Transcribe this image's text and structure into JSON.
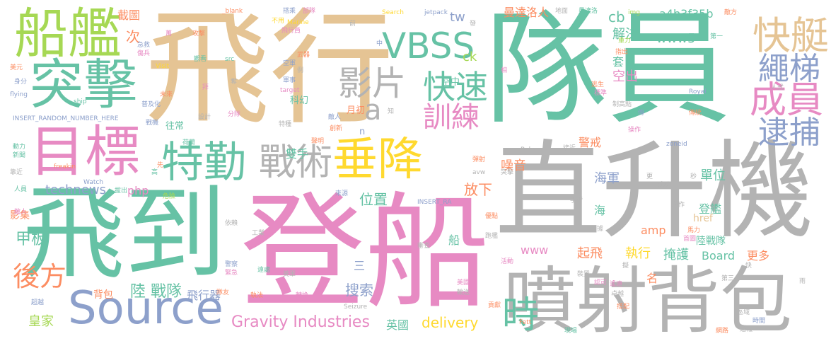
{
  "palette": {
    "green": "#66c2a5",
    "orange": "#fc8d62",
    "blue": "#8da0cb",
    "pink": "#e78ac3",
    "lime": "#a6d854",
    "yellow": "#ffd92f",
    "tan": "#e5c494",
    "gray": "#b3b3b3",
    "background": "#ffffff"
  },
  "words": {
    "feixing": "飛行",
    "duiyuan": "隊員",
    "zhishengji": "直升機",
    "dengchuan": "登船",
    "feidao": "飛到",
    "penshe_beibao": "噴射背包",
    "chuanjian": "船艦",
    "tuji": "突擊",
    "mubiao": "目標",
    "teqin": "特勤",
    "zhanshu": "戰術",
    "chuijiang": "垂降",
    "source": "Source",
    "vbss": "VBSS",
    "kuaiting": "快艇",
    "shengti": "繩梯",
    "chengyuan": "成員",
    "daibu": "逮捕",
    "yingpian": "影片",
    "kuaisu": "快速",
    "xunlian": "訓練",
    "a": "a",
    "shi": "時",
    "houfang": "後方",
    "gravity": "Gravity Industries",
    "delivery": "delivery",
    "huangjia": "皇家",
    "yingguo": "英國",
    "sousuo": "搜索",
    "luzhandui_big": "陸 戰隊",
    "feixingqi": "飛行器",
    "beibao": "背包",
    "jiaban": "甲板",
    "yingji": "影集",
    "technews": "technews",
    "php": "php",
    "weizhi": "位置",
    "shuangshou": "雙手",
    "fangxia": "放下",
    "san": "三",
    "www5": "www5",
    "jiejue": "解決",
    "cb": "cb",
    "hash": "a4b3f35b",
    "mandaluoren": "曼達洛人",
    "tw": "tw",
    "ck": "ck",
    "jietu": "截圖",
    "ci": "次",
    "jingjie": "警戒",
    "zaoyin": "噪音",
    "danwei": "單位",
    "haijun": "海軍",
    "kongchu": "空出",
    "tao": "套",
    "hai": "海",
    "dengjian": "登艦",
    "amp": "amp",
    "href": "href",
    "luzhandui": "陸戰隊",
    "www": "www",
    "qifei": "起飛",
    "zhixing": "執行",
    "yanhu": "掩護",
    "board": "Board",
    "gengduo": "更多",
    "ming": "名",
    "chuan_small": "船",
    "kongzhong": "空中",
    "yuechu": "月初",
    "kehuan": "科幻",
    "wangchang": "往常",
    "n": "n",
    "blank": "_blank",
    "dashi": "搭乘",
    "buxia": "部隊",
    "search": "Search",
    "jetpack": "jetpack",
    "ditu": "地面",
    "mandaluo": "曼達洛",
    "difang": "敵方",
    "img": "img",
    "diyi": "第一",
    "marine": "Marine",
    "feixingyuan": "飛行員",
    "gongji": "攻擊",
    "wuqi": "武器",
    "zhongli": "重力",
    "zhichu": "指出",
    "jiji": "急救",
    "shangyuan": "傷兵",
    "meiyuan": "美元",
    "visit": "Visit",
    "guanjian": "觀看",
    "src": "src",
    "kongjun": "空軍",
    "junshi": "軍事",
    "li": "例",
    "target": "target",
    "weilai": "未來",
    "taosheng": "逃生",
    "biaozhun": "標準",
    "zhigaodian": "制高點",
    "shenfen": "身分",
    "flying": "flying",
    "ship": "ship",
    "puji": "普及化",
    "royal": "Royal",
    "insert_long": "INSERT_RANDOM_NUMBER_HERE",
    "insert_short": "INSERT_RA",
    "sheji": "設計",
    "fenshou": "分隊",
    "zhidao": "知",
    "diren": "敵人",
    "chuangxin": "創新",
    "shengming": "聲明",
    "zhanji": "戰機",
    "tezhong": "特種",
    "chuantong": "傳統",
    "caozuo": "操作",
    "dongli": "動力",
    "xinwen": "新聞",
    "helan": "荷蘭",
    "boba": "Boba",
    "zoneid": "zoneid",
    "jiejin": "接近",
    "danshe": "彈射",
    "freakin": "freakin",
    "watch": "Watch",
    "avw": "avw",
    "tuji_small": "突擊",
    "kaojin": "靠近",
    "gao": "高",
    "renyuan": "人員",
    "bachu": "拔出",
    "weixian": "危險",
    "laiyuan": "來源",
    "buyong": "不用",
    "chenggong": "成功",
    "miao": "秒",
    "shoubei": "手臂",
    "dongzuo": "動作",
    "renshi": "人式",
    "geng": "更",
    "ma": "馬力",
    "shouye": "首圖",
    "ju": "據",
    "diren2": "敵人",
    "yilai": "依賴",
    "gongye": "工業",
    "shenqi": "審查",
    "paojian": "跑艦",
    "youdian": "優點",
    "jingcha": "警察",
    "jinji": "緊急",
    "yuancheng": "遠處",
    "meiguo": "美軍",
    "meiguo2": "美國",
    "shusong": "輸送",
    "huodong": "活動",
    "zhuangzhi": "裝置",
    "renke": "認可",
    "disan": "第三",
    "kuai": "快",
    "ju2": "擬",
    "yaoyuan": "遙遠",
    "zhuoyue": "卓越",
    "gongxian": "貢獻",
    "seizure": "Seizure",
    "zhuanhuan": "轉換",
    "dapei": "搭配",
    "yu": "雨",
    "quyu": "區域",
    "shijian": "時間",
    "fett": "Fett",
    "xianchang": "現場",
    "wanglu": "網路",
    "tongbao": "通報",
    "chaoshi": "超越",
    "zhixie": "執法",
    "huiyou": "隊友",
    "zhong": "中",
    "qian": "前",
    "xian": "先",
    "wan": "萬",
    "bei": "傳",
    "bai": "拜",
    "duo": "奪",
    "xiang": "相",
    "fa": "發"
  }
}
